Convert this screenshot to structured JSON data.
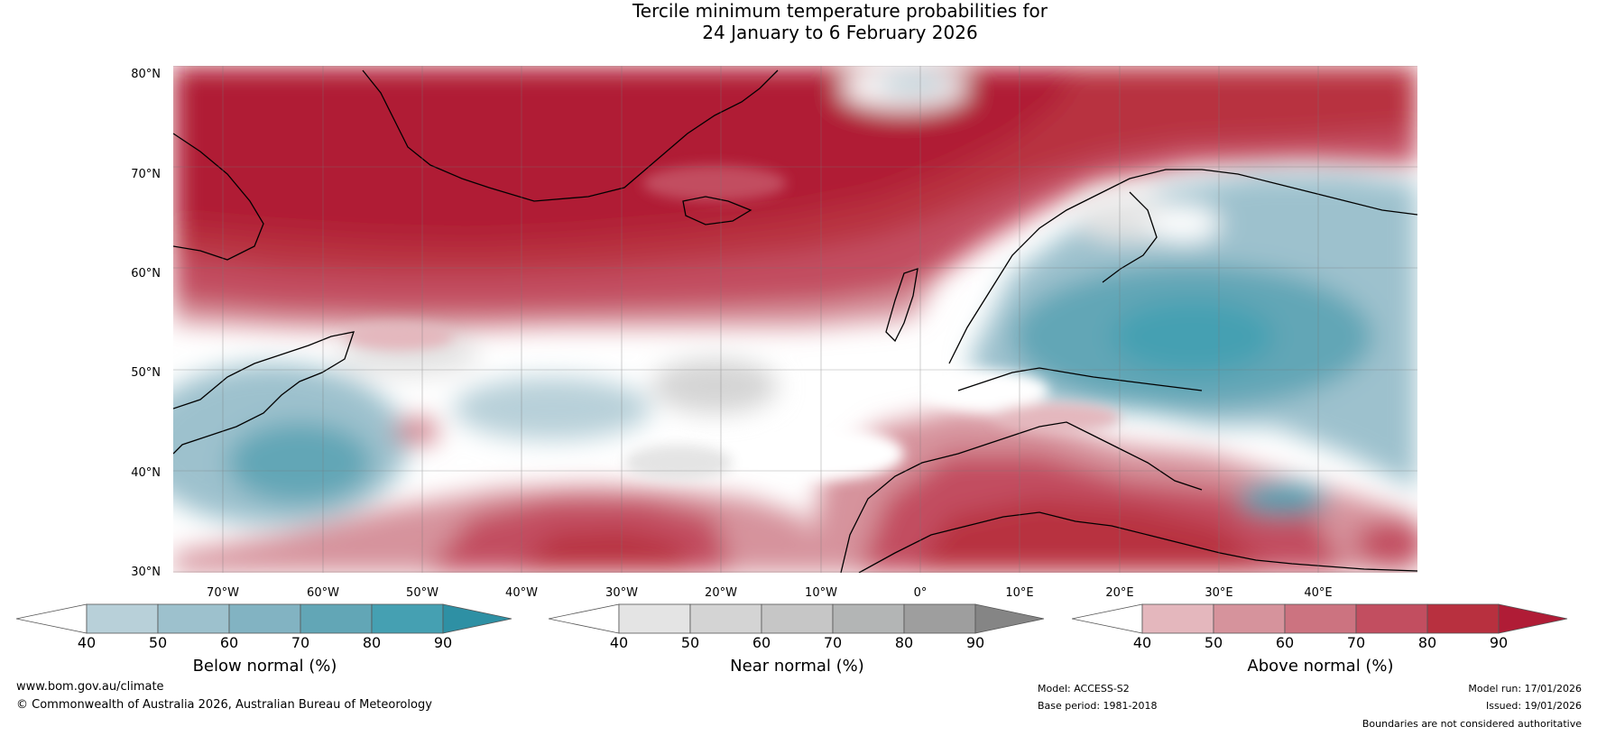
{
  "title": {
    "line1": "Tercile minimum temperature probabilities for",
    "line2": "24 January to 6 February 2026"
  },
  "map": {
    "lat_labels": [
      "80°N",
      "70°N",
      "60°N",
      "50°N",
      "40°N",
      "30°N"
    ],
    "lon_labels": [
      "70°W",
      "60°W",
      "50°W",
      "40°W",
      "30°W",
      "20°W",
      "10°W",
      "0°",
      "10°E",
      "20°E",
      "30°E",
      "40°E"
    ]
  },
  "colorbars": [
    {
      "title": "Below normal (%)",
      "ticks": [
        "40",
        "50",
        "60",
        "70",
        "80",
        "90"
      ],
      "colors": [
        "#b8d0d9",
        "#9dc1cd",
        "#82b3c2",
        "#62a6b6",
        "#45a0b2",
        "#2e90a4"
      ]
    },
    {
      "title": "Near normal (%)",
      "ticks": [
        "40",
        "50",
        "60",
        "70",
        "80",
        "90"
      ],
      "colors": [
        "#e4e4e4",
        "#d4d4d4",
        "#c6c6c6",
        "#b3b5b5",
        "#9e9e9e",
        "#858585"
      ]
    },
    {
      "title": "Above normal (%)",
      "ticks": [
        "40",
        "50",
        "60",
        "70",
        "80",
        "90"
      ],
      "colors": [
        "#e4b7bd",
        "#d6939c",
        "#cc7380",
        "#c24e60",
        "#b8303f",
        "#b01c36"
      ]
    }
  ],
  "footer": {
    "website": "www.bom.gov.au/climate",
    "copyright": "© Commonwealth of Australia 2026, Australian Bureau of Meteorology",
    "model": "Model: ACCESS-S2",
    "base_period": "Base period: 1981-2018",
    "model_run": "Model run: 17/01/2026",
    "issued": "Issued: 19/01/2026",
    "disclaimer": "Boundaries are not considered authoritative"
  }
}
